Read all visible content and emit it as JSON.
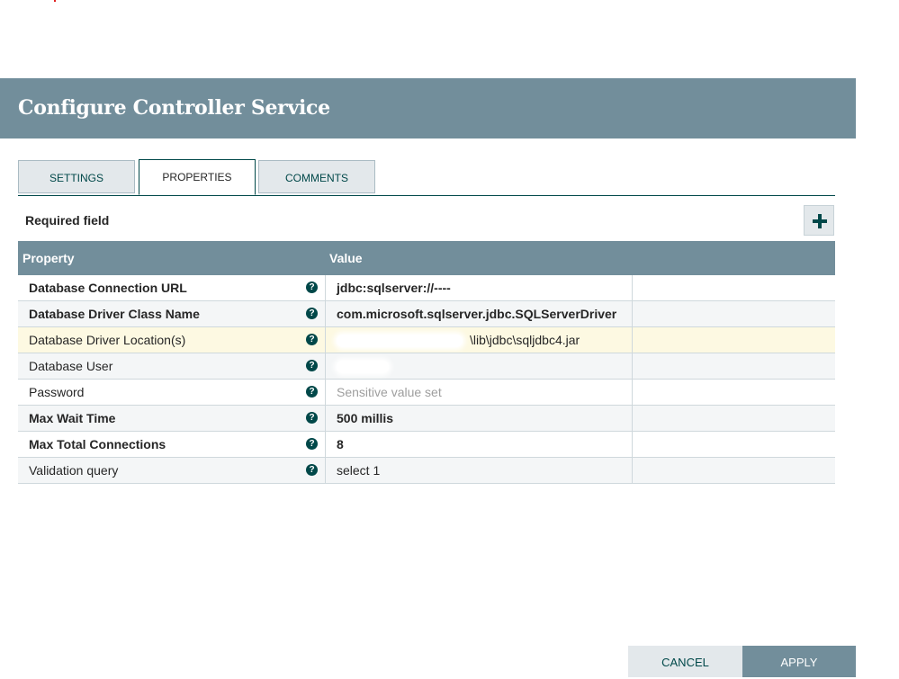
{
  "dialog": {
    "title": "Configure Controller Service"
  },
  "tabs": [
    {
      "label": "SETTINGS"
    },
    {
      "label": "PROPERTIES"
    },
    {
      "label": "COMMENTS"
    }
  ],
  "properties_panel": {
    "required_label": "Required field",
    "add_icon": "plus-icon",
    "columns": {
      "property": "Property",
      "value": "Value"
    },
    "help_icon": "question-circle-icon",
    "rows": [
      {
        "property": "Database Connection URL",
        "value": "jdbc:sqlserver://----",
        "required": true
      },
      {
        "property": "Database Driver Class Name",
        "value": "com.microsoft.sqlserver.jdbc.SQLServerDriver",
        "required": true
      },
      {
        "property": "Database Driver Location(s)",
        "value": "\\lib\\jdbc\\sqljdbc4.jar",
        "required": false
      },
      {
        "property": "Database User",
        "value": "",
        "required": false
      },
      {
        "property": "Password",
        "value": "Sensitive value set",
        "required": false
      },
      {
        "property": "Max Wait Time",
        "value": "500 millis",
        "required": true
      },
      {
        "property": "Max Total Connections",
        "value": "8",
        "required": true
      },
      {
        "property": "Validation query",
        "value": "select 1",
        "required": false
      }
    ]
  },
  "footer": {
    "cancel_label": "CANCEL",
    "apply_label": "APPLY"
  },
  "colors": {
    "header_bg": "#728e9b",
    "accent": "#004849",
    "highlight_row": "#fdf9e2"
  }
}
